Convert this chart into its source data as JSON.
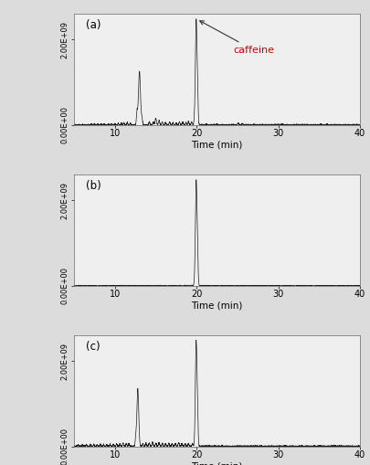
{
  "background_color": "#dcdcdc",
  "panel_bg": "#efefef",
  "line_color": "#1a1a1a",
  "xlim": [
    5,
    40
  ],
  "ylim": [
    0,
    2600000000.0
  ],
  "yticks": [
    0.0,
    2000000000.0
  ],
  "ytick_labels": [
    "0.00E+00",
    "2.00E+09"
  ],
  "xticks": [
    10,
    20,
    30,
    40
  ],
  "xlabel": "Time (min)",
  "caffeine_label": "caffeine",
  "caffeine_color": "#cc0000",
  "panels": [
    "(a)",
    "(b)",
    "(c)"
  ]
}
